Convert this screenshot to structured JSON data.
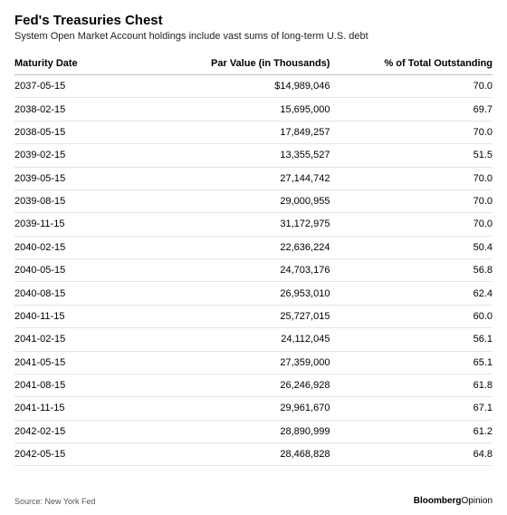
{
  "header": {
    "title": "Fed's Treasuries Chest",
    "subtitle": "System Open Market Account holdings include vast sums of long-term U.S. debt"
  },
  "table": {
    "columns": [
      "Maturity Date",
      "Par Value (in Thousands)",
      "% of Total Outstanding"
    ],
    "rows": [
      [
        "2037-05-15",
        "$14,989,046",
        "70.0"
      ],
      [
        "2038-02-15",
        "15,695,000",
        "69.7"
      ],
      [
        "2038-05-15",
        "17,849,257",
        "70.0"
      ],
      [
        "2039-02-15",
        "13,355,527",
        "51.5"
      ],
      [
        "2039-05-15",
        "27,144,742",
        "70.0"
      ],
      [
        "2039-08-15",
        "29,000,955",
        "70.0"
      ],
      [
        "2039-11-15",
        "31,172,975",
        "70.0"
      ],
      [
        "2040-02-15",
        "22,636,224",
        "50.4"
      ],
      [
        "2040-05-15",
        "24,703,176",
        "56.8"
      ],
      [
        "2040-08-15",
        "26,953,010",
        "62.4"
      ],
      [
        "2040-11-15",
        "25,727,015",
        "60.0"
      ],
      [
        "2041-02-15",
        "24,112,045",
        "56.1"
      ],
      [
        "2041-05-15",
        "27,359,000",
        "65.1"
      ],
      [
        "2041-08-15",
        "26,246,928",
        "61.8"
      ],
      [
        "2041-11-15",
        "29,961,670",
        "67.1"
      ],
      [
        "2042-02-15",
        "28,890,999",
        "61.2"
      ],
      [
        "2042-05-15",
        "28,468,828",
        "64.8"
      ]
    ]
  },
  "footer": {
    "source": "Source: New York Fed",
    "brand_bold": "Bloomberg",
    "brand_light": "Opinion"
  },
  "style": {
    "background_color": "#ffffff",
    "text_color": "#000000",
    "header_border_color": "#bfbfbf",
    "row_border_color": "#e5e5e5",
    "title_fontsize": 15,
    "subtitle_fontsize": 11,
    "cell_fontsize": 11,
    "footer_fontsize": 9
  }
}
